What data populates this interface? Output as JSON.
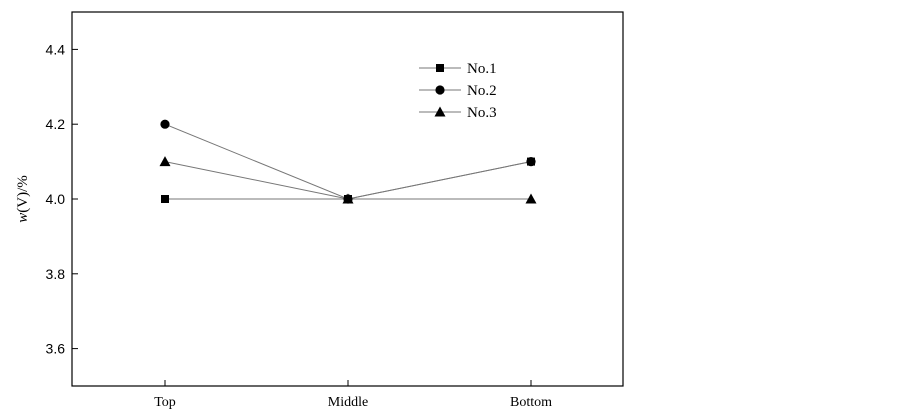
{
  "chart_data": {
    "type": "line",
    "categories": [
      "Top",
      "Middle",
      "Bottom"
    ],
    "series": [
      {
        "name": "No.1",
        "marker": "square",
        "values": [
          4.0,
          4.0,
          4.1
        ]
      },
      {
        "name": "No.2",
        "marker": "circle",
        "values": [
          4.2,
          4.0,
          4.1
        ]
      },
      {
        "name": "No.3",
        "marker": "triangle",
        "values": [
          4.1,
          4.0,
          4.0
        ]
      }
    ],
    "ylabel_italic": "w",
    "ylabel_rest": "(V)/%",
    "ylim": [
      3.5,
      4.5
    ],
    "yticks": [
      3.6,
      3.8,
      4.0,
      4.2,
      4.4
    ],
    "ytick_labels": [
      "3.6",
      "3.8",
      "4.0",
      "4.2",
      "4.4"
    ],
    "grid": false,
    "legend_position": "top-right",
    "line_color": "#777777",
    "marker_color": "#000000"
  }
}
